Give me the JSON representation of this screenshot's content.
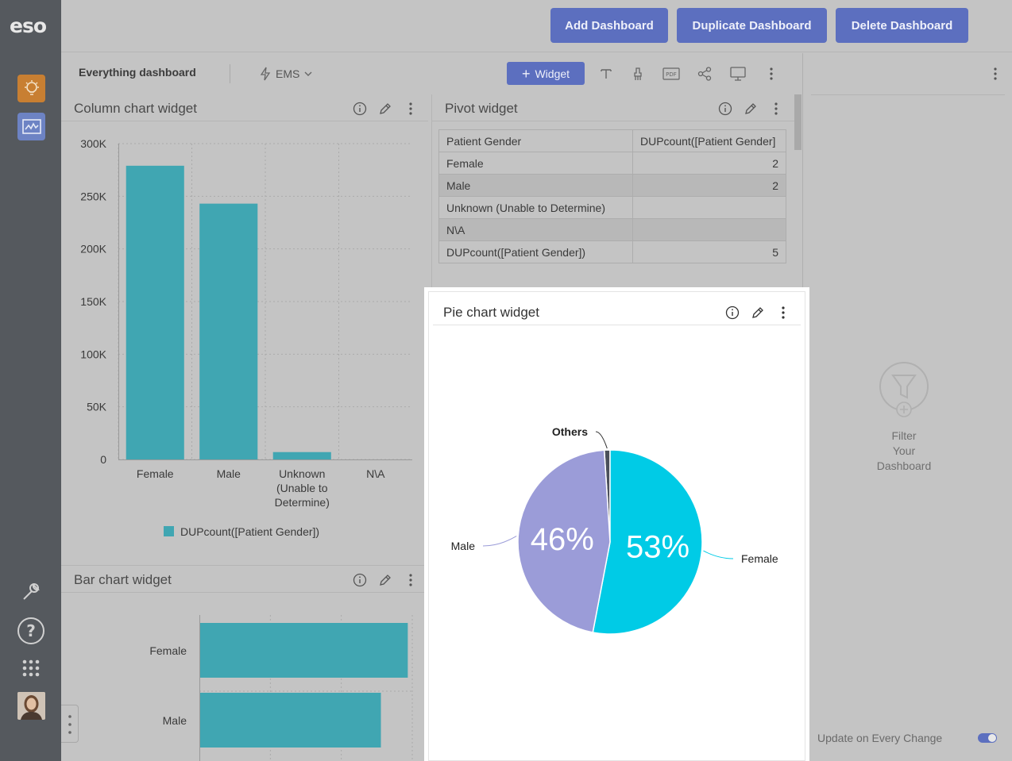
{
  "app": {
    "logo": "eso"
  },
  "topbar": {
    "add_dashboard": "Add Dashboard",
    "duplicate_dashboard": "Duplicate Dashboard",
    "delete_dashboard": "Delete Dashboard"
  },
  "dashboard": {
    "title": "Everything dashboard",
    "source": "EMS",
    "widget_button": "Widget"
  },
  "column_widget": {
    "title": "Column chart widget",
    "legend": "DUPcount([Patient Gender])"
  },
  "bar_widget": {
    "title": "Bar chart widget"
  },
  "pivot_widget": {
    "title": "Pivot widget",
    "headers": [
      "Patient Gender",
      "DUPcount([Patient Gender]"
    ],
    "rows": [
      {
        "label": "Female",
        "value": "2"
      },
      {
        "label": "Male",
        "value": "2"
      },
      {
        "label": "Unknown (Unable to Determine)",
        "value": ""
      },
      {
        "label": "N\\A",
        "value": ""
      },
      {
        "label": "DUPcount([Patient Gender])",
        "value": "5"
      }
    ]
  },
  "pie_widget": {
    "title": "Pie chart widget"
  },
  "right_panel": {
    "filter_text": [
      "Filter",
      "Your",
      "Dashboard"
    ],
    "update_label": "Update on Every Change"
  },
  "colors": {
    "accent": "#5c6fbf",
    "teal": "#40a6b2",
    "pie_female": "#00cbe6",
    "pie_male": "#9b9cd8",
    "pie_others": "#4a4f5a"
  },
  "chart_data": [
    {
      "type": "bar",
      "title": "Column chart widget",
      "categories": [
        "Female",
        "Male",
        "Unknown (Unable to Determine)",
        "N\\A"
      ],
      "category_lines": [
        [
          "Female"
        ],
        [
          "Male"
        ],
        [
          "Unknown",
          "(Unable to",
          "Determine)"
        ],
        [
          "N\\A"
        ]
      ],
      "series": [
        {
          "name": "DUPcount([Patient Gender])",
          "values": [
            279000,
            243000,
            7000,
            0
          ]
        }
      ],
      "ylim": [
        0,
        300000
      ],
      "yticks": [
        0,
        50000,
        100000,
        150000,
        200000,
        250000,
        300000
      ],
      "ytick_labels": [
        "0",
        "50K",
        "100K",
        "150K",
        "200K",
        "250K",
        "300K"
      ],
      "grid": true,
      "legend": "bottom"
    },
    {
      "type": "bar",
      "orientation": "horizontal",
      "title": "Bar chart widget",
      "categories": [
        "Female",
        "Male"
      ],
      "series": [
        {
          "name": "DUPcount([Patient Gender])",
          "values": [
            279000,
            243000
          ]
        }
      ],
      "xlim": [
        0,
        285000
      ],
      "grid": true
    },
    {
      "type": "pie",
      "title": "Pie chart widget",
      "slices": [
        {
          "label": "Female",
          "value": 53,
          "display": "53%"
        },
        {
          "label": "Male",
          "value": 46,
          "display": "46%"
        },
        {
          "label": "Others",
          "value": 1,
          "display": ""
        }
      ]
    }
  ]
}
